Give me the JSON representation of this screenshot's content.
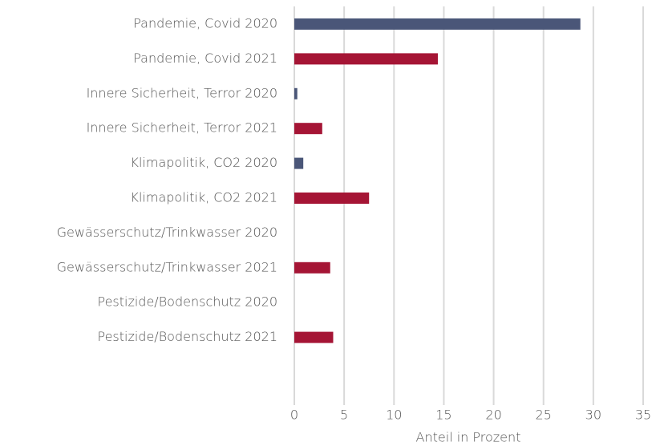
{
  "chart_data": {
    "type": "bar",
    "orientation": "horizontal",
    "categories": [
      "Pandemie, Covid 2020",
      "Pandemie, Covid 2021",
      "Innere Sicherheit, Terror 2020",
      "Innere Sicherheit, Terror 2021",
      "Klimapolitik, CO2 2020",
      "Klimapolitik, CO2 2021",
      "Gewässerschutz/Trinkwasser 2020",
      "Gewässerschutz/Trinkwasser 2021",
      "Pestizide/Bodenschutz 2020",
      "Pestizide/Bodenschutz 2021"
    ],
    "values": [
      28.7,
      14.4,
      0.3,
      2.8,
      0.9,
      7.5,
      0,
      3.6,
      0,
      3.9
    ],
    "colors": [
      "#4a5678",
      "#a51535",
      "#4a5678",
      "#a51535",
      "#4a5678",
      "#a51535",
      "#4a5678",
      "#a51535",
      "#4a5678",
      "#a51535"
    ],
    "xlabel": "Anteil in Prozent",
    "xlim": [
      0,
      35
    ],
    "xticks": [
      0,
      5,
      10,
      15,
      20,
      25,
      30,
      35
    ],
    "grid": true
  }
}
